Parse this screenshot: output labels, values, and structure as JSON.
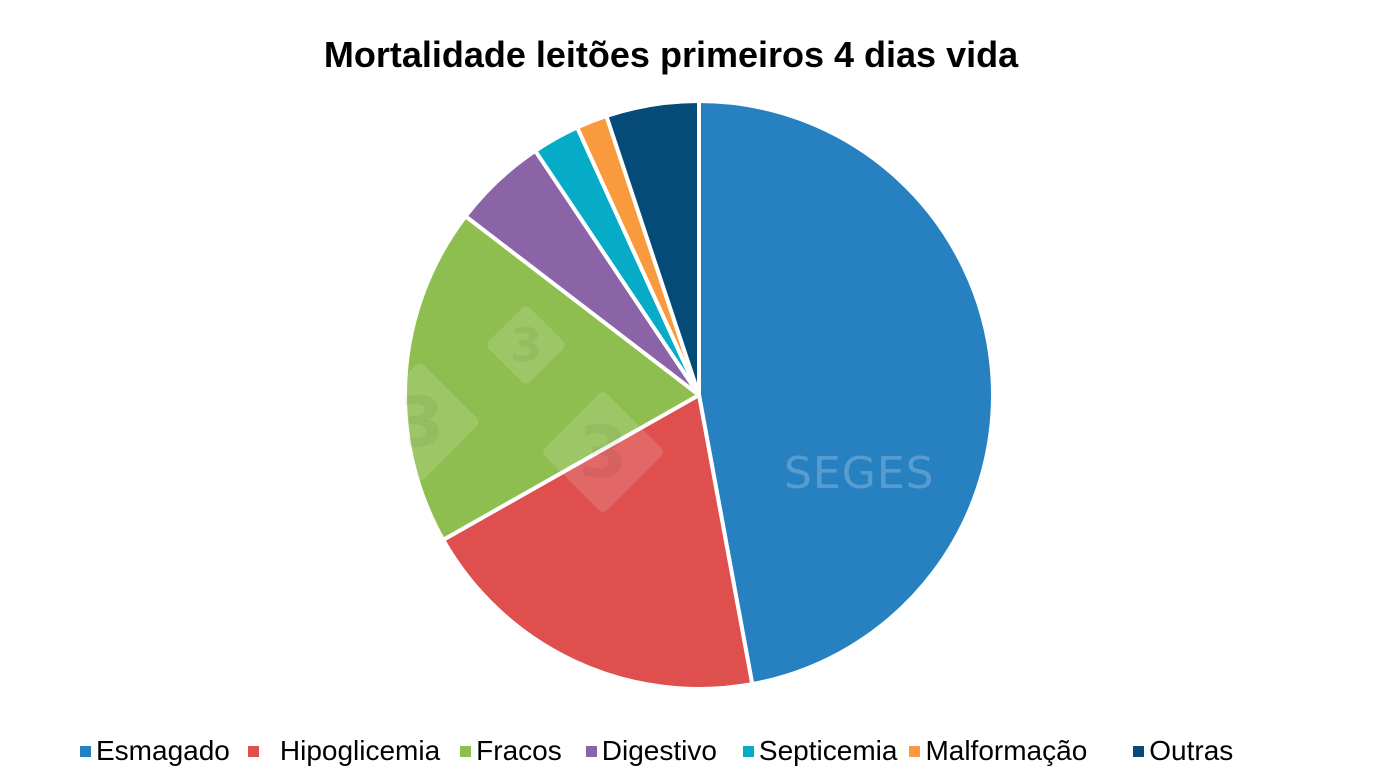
{
  "chart_data": {
    "type": "pie",
    "title": "Mortalidade leitões primeiros 4 dias vida",
    "categories": [
      "Esmagado",
      "Hipoglicemia",
      "Fracos",
      "Digestivo",
      "Septicemia",
      "Malformação",
      "Outras"
    ],
    "values": [
      47.1,
      19.7,
      18.6,
      5.2,
      2.6,
      1.7,
      5.1
    ],
    "unit": "%",
    "colors": [
      "#2781C1",
      "#DE4F4E",
      "#8DBE4F",
      "#8A64A6",
      "#05ABC7",
      "#FA9A3E",
      "#044C77"
    ],
    "start_angle_deg": 0,
    "direction": "clockwise",
    "legend_position": "bottom"
  },
  "legend": [
    {
      "label": "Esmagado",
      "gap": ""
    },
    {
      "label": "Hipoglicemia",
      "gap": "  "
    },
    {
      "label": "Fracos",
      "gap": ""
    },
    {
      "label": "Digestivo",
      "gap": ""
    },
    {
      "label": "Septicemia",
      "gap": ""
    },
    {
      "label": "Malformação",
      "gap": ""
    },
    {
      "label": "Outras",
      "gap": ""
    }
  ],
  "watermark": {
    "text": "SEGES",
    "logo_glyph": "3"
  }
}
